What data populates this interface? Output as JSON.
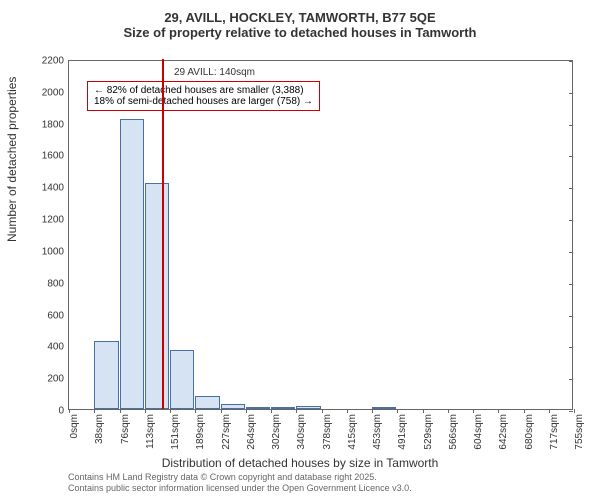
{
  "chart": {
    "type": "histogram",
    "title_line1": "29, AVILL, HOCKLEY, TAMWORTH, B77 5QE",
    "title_line2": "Size of property relative to detached houses in Tamworth",
    "y_axis_label": "Number of detached properties",
    "x_axis_label": "Distribution of detached houses by size in Tamworth",
    "background_color": "#ffffff",
    "border_color": "#666666",
    "bar_fill_color": "#d6e3f3",
    "bar_border_color": "#4a6fa5",
    "ref_line_color": "#cc0000",
    "annotation_border_color": "#cc0000",
    "y_ticks": [
      0,
      200,
      400,
      600,
      800,
      1000,
      1200,
      1400,
      1600,
      1800,
      2000,
      2200
    ],
    "y_max": 2200,
    "x_ticks": [
      "0sqm",
      "38sqm",
      "76sqm",
      "113sqm",
      "151sqm",
      "189sqm",
      "227sqm",
      "264sqm",
      "302sqm",
      "340sqm",
      "378sqm",
      "415sqm",
      "453sqm",
      "491sqm",
      "529sqm",
      "566sqm",
      "604sqm",
      "642sqm",
      "680sqm",
      "717sqm",
      "755sqm"
    ],
    "bars": [
      {
        "x": 1,
        "value": 430
      },
      {
        "x": 2,
        "value": 1820
      },
      {
        "x": 3,
        "value": 1420
      },
      {
        "x": 4,
        "value": 370
      },
      {
        "x": 5,
        "value": 80
      },
      {
        "x": 6,
        "value": 30
      },
      {
        "x": 7,
        "value": 5
      },
      {
        "x": 8,
        "value": 15
      },
      {
        "x": 9,
        "value": 20
      },
      {
        "x": 12,
        "value": 5
      }
    ],
    "ref_line_x": 3.68,
    "annotation_title": "29 AVILL: 140sqm",
    "annotation_line1": "← 82% of detached houses are smaller (3,388)",
    "annotation_line2": "18% of semi-detached houses are larger (758) →",
    "footer_line1": "Contains HM Land Registry data © Crown copyright and database right 2025.",
    "footer_line2": "Contains public sector information licensed under the Open Government Licence v3.0."
  }
}
